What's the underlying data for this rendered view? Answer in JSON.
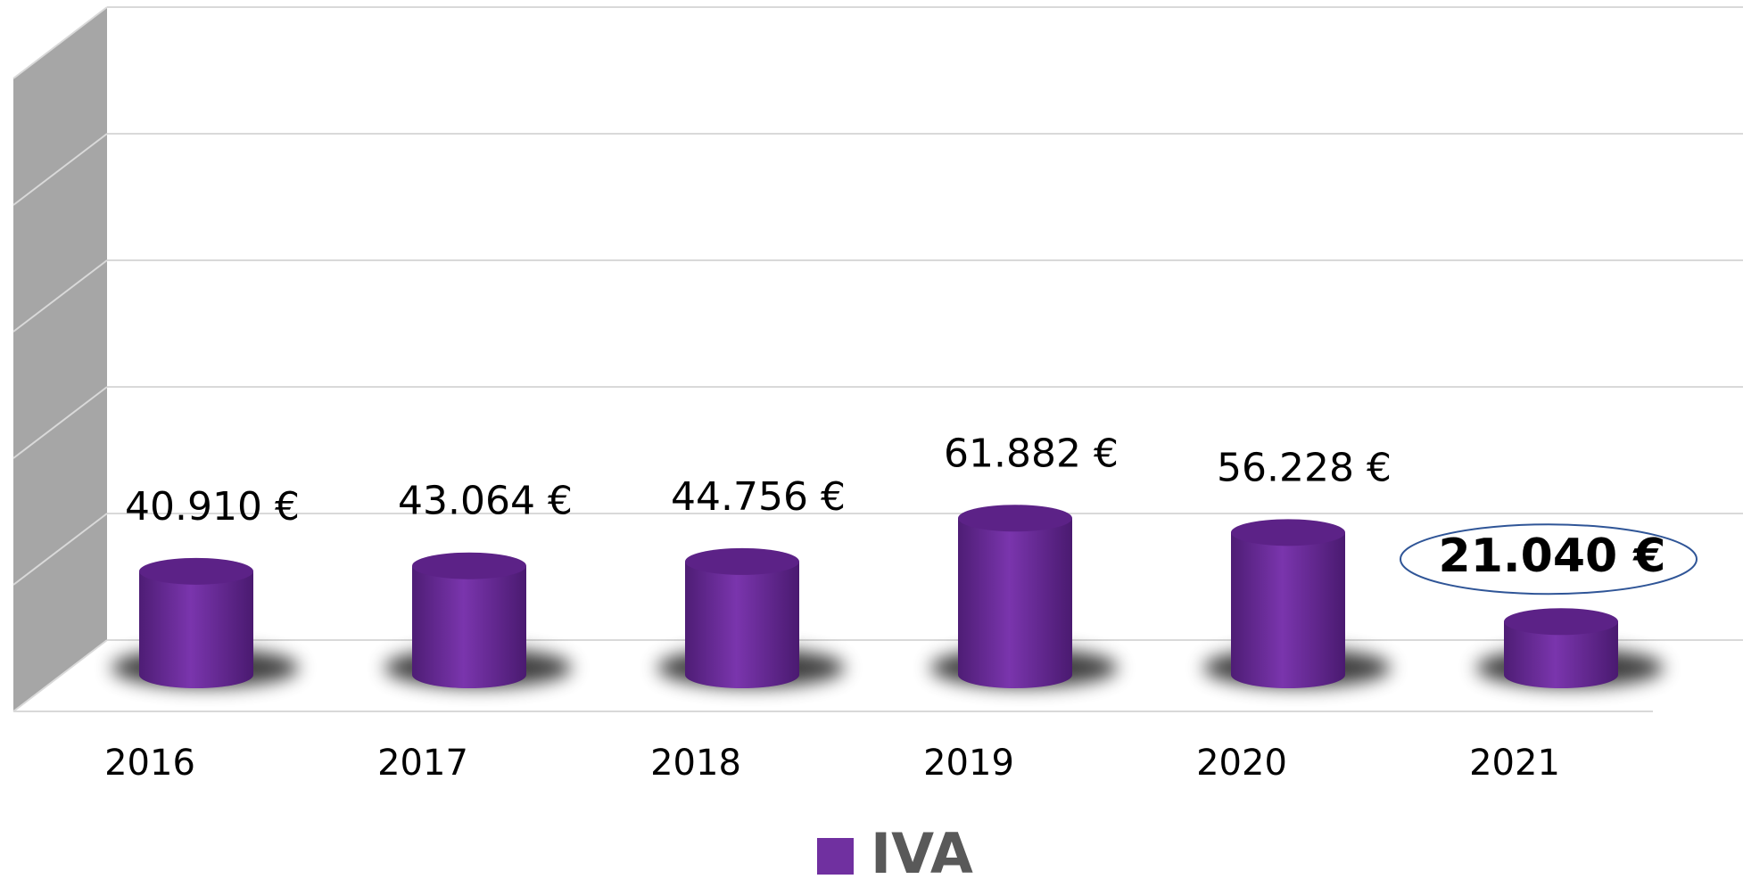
{
  "chart_data": {
    "type": "bar3d_cylinder",
    "categories": [
      "2016",
      "2017",
      "2018",
      "2019",
      "2020",
      "2021"
    ],
    "series": [
      {
        "name": "IVA",
        "color": "#7030a0",
        "values": [
          40910,
          43064,
          44756,
          61882,
          56228,
          21040
        ],
        "value_labels": [
          "40.910 €",
          "43.064 €",
          "44.756 €",
          "61.882 €",
          "56.228 €",
          "21.040 €"
        ]
      }
    ],
    "ylim": [
      0,
      250000
    ],
    "yticks": [
      0,
      50000,
      100000,
      150000,
      200000,
      250000
    ],
    "grid": true
  }
}
